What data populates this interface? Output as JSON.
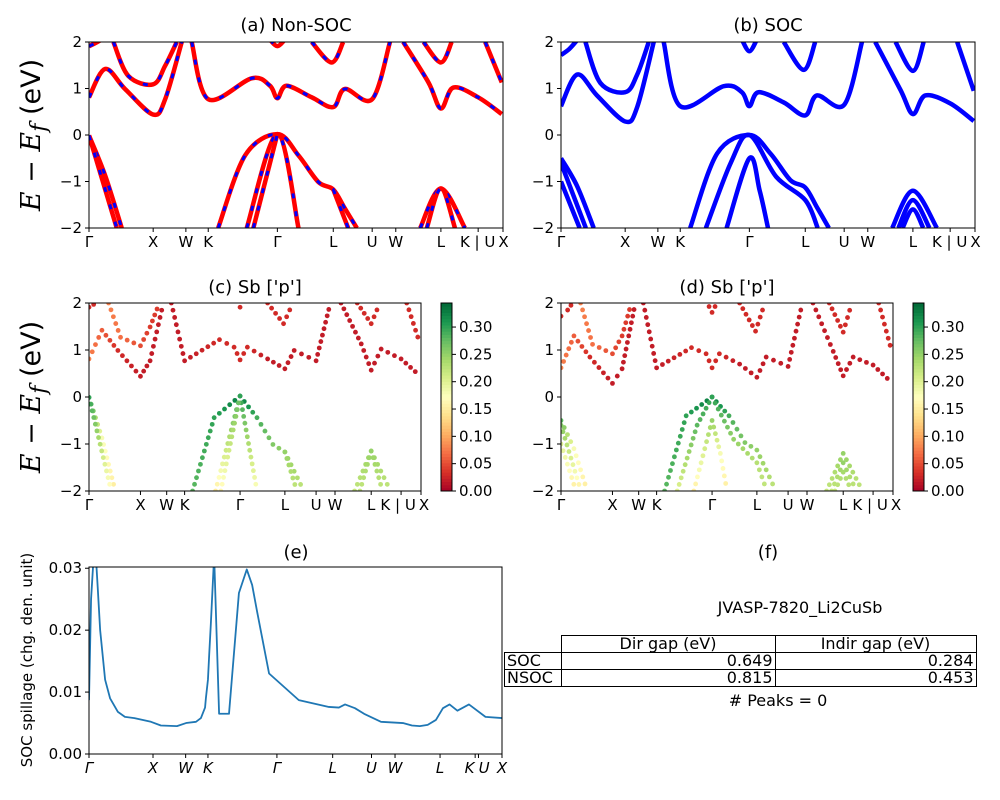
{
  "panels": {
    "a": {
      "title": "(a) Non-SOC"
    },
    "b": {
      "title": "(b) SOC"
    },
    "c": {
      "title": "(c)  Sb ['p']"
    },
    "d": {
      "title": "(d) Sb ['p']"
    },
    "e": {
      "title": "(e)",
      "ylabel": "SOC spillage (chg. den. unit)"
    },
    "f": {
      "title": "(f)"
    }
  },
  "ylabel_band": {
    "main": "E − E",
    "sub": "f",
    "unit": " (eV)"
  },
  "colors": {
    "non_soc_line": "#ff0000",
    "non_soc_dash": "#0000ff",
    "soc_line": "#0000ff",
    "spillage_line": "#1f77b4",
    "colormap": [
      "#a50026",
      "#d73027",
      "#f46d43",
      "#fdae61",
      "#fee08b",
      "#ffffbf",
      "#d9ef8b",
      "#a6d96a",
      "#66bd63",
      "#1a9850",
      "#006837"
    ]
  },
  "chart_data": [
    {
      "type": "line",
      "id": "band_structure",
      "kpath_ticks": [
        {
          "k": 0,
          "label": "Γ"
        },
        {
          "k": 0.155,
          "label": "X"
        },
        {
          "k": 0.234,
          "label": "W"
        },
        {
          "k": 0.288,
          "label": "K"
        },
        {
          "k": 0.455,
          "label": "Γ"
        },
        {
          "k": 0.59,
          "label": "L"
        },
        {
          "k": 0.684,
          "label": "U"
        },
        {
          "k": 0.741,
          "label": "W"
        },
        {
          "k": 0.85,
          "label": "L"
        },
        {
          "k": 0.94,
          "label": "K | U"
        },
        {
          "k": 1.0,
          "label": "X"
        }
      ],
      "ylim": [
        -2,
        2
      ],
      "yticks": [
        -2,
        -1,
        0,
        1,
        2
      ],
      "band_point_fields": [
        "k",
        "E - Ef (eV)",
        "Sb p weight"
      ],
      "non_soc_bands": [
        [
          [
            0,
            0.81,
            0.08
          ],
          [
            0.039,
            1.42,
            0.06
          ],
          [
            0.087,
            0.99,
            0.03
          ],
          [
            0.155,
            0.44,
            0.02
          ],
          [
            0.184,
            0.77,
            0.02
          ],
          [
            0.224,
            2.0,
            0.02
          ]
        ],
        [
          [
            0.248,
            2.0,
            0.02
          ],
          [
            0.288,
            0.77,
            0.02
          ],
          [
            0.393,
            1.22,
            0.03
          ],
          [
            0.437,
            1.06,
            0.03
          ],
          [
            0.455,
            0.79,
            0.03
          ],
          [
            0.477,
            1.06,
            0.03
          ],
          [
            0.538,
            0.81,
            0.02
          ],
          [
            0.59,
            0.6,
            0.02
          ],
          [
            0.618,
            0.99,
            0.02
          ],
          [
            0.684,
            0.77,
            0.02
          ],
          [
            0.727,
            2.0,
            0.02
          ]
        ],
        [
          [
            0.759,
            2.0,
            0.02
          ],
          [
            0.82,
            1.13,
            0.02
          ],
          [
            0.85,
            0.57,
            0.02
          ],
          [
            0.88,
            1.02,
            0.02
          ],
          [
            0.94,
            0.81,
            0.02
          ],
          [
            0.997,
            0.45,
            0.02
          ]
        ],
        [
          [
            0,
            1.91,
            0.03
          ],
          [
            0.014,
            1.97,
            0.03
          ],
          [
            0.03,
            2.05,
            0.03
          ]
        ],
        [
          [
            0.059,
            2.0,
            0.08
          ],
          [
            0.095,
            1.27,
            0.07
          ],
          [
            0.155,
            1.09,
            0.05
          ],
          [
            0.184,
            1.49,
            0.04
          ],
          [
            0.212,
            2.0,
            0.04
          ]
        ],
        [
          [
            0.437,
            2.05,
            0.03
          ],
          [
            0.455,
            1.91,
            0.03
          ],
          [
            0.473,
            2.05,
            0.03
          ]
        ],
        [
          [
            0.538,
            2.0,
            0.03
          ],
          [
            0.586,
            1.56,
            0.03
          ],
          [
            0.614,
            2.0,
            0.03
          ]
        ],
        [
          [
            0.808,
            2.0,
            0.03
          ],
          [
            0.85,
            1.56,
            0.03
          ],
          [
            0.876,
            2.0,
            0.03
          ]
        ],
        [
          [
            0.957,
            2.0,
            0.03
          ],
          [
            0.997,
            1.13,
            0.03
          ]
        ],
        [
          [
            0.312,
            -2,
            0.28
          ],
          [
            0.377,
            -0.44,
            0.3
          ],
          [
            0.455,
            0.02,
            0.33
          ],
          [
            0.506,
            -0.44,
            0.29
          ],
          [
            0.554,
            -1.01,
            0.26
          ],
          [
            0.59,
            -1.17,
            0.25
          ],
          [
            0.618,
            -1.58,
            0.24
          ],
          [
            0.647,
            -2,
            0.22
          ]
        ],
        [
          [
            0.381,
            -2,
            0.15
          ],
          [
            0.455,
            0.02,
            0.3
          ],
          [
            0.506,
            -2,
            0.17
          ]
        ],
        [
          [
            0.397,
            -2,
            0.16
          ],
          [
            0.455,
            0.02,
            0.28
          ]
        ],
        [
          [
            0.59,
            -1.17,
            0.25
          ],
          [
            0.626,
            -2,
            0.22
          ]
        ],
        [
          [
            0,
            -0.01,
            0.3
          ],
          [
            0.039,
            -0.87,
            0.18
          ],
          [
            0.079,
            -2,
            0.15
          ]
        ],
        [
          [
            0,
            -0.01,
            0.3
          ],
          [
            0.067,
            -2,
            0.16
          ]
        ],
        [
          [
            0.8,
            -2,
            0.22
          ],
          [
            0.85,
            -1.15,
            0.25
          ],
          [
            0.908,
            -2,
            0.22
          ]
        ],
        [
          [
            0.816,
            -2,
            0.22
          ],
          [
            0.85,
            -1.15,
            0.25
          ],
          [
            0.884,
            -2,
            0.22
          ]
        ]
      ],
      "soc_bands": [
        [
          [
            0,
            0.62,
            0.08
          ],
          [
            0.039,
            1.3,
            0.06
          ],
          [
            0.087,
            0.85,
            0.03
          ],
          [
            0.155,
            0.29,
            0.02
          ],
          [
            0.184,
            0.6,
            0.02
          ],
          [
            0.224,
            2.0,
            0.02
          ]
        ],
        [
          [
            0.248,
            2.0,
            0.02
          ],
          [
            0.288,
            0.62,
            0.02
          ],
          [
            0.393,
            1.05,
            0.03
          ],
          [
            0.437,
            0.92,
            0.03
          ],
          [
            0.455,
            0.62,
            0.03
          ],
          [
            0.477,
            0.92,
            0.03
          ],
          [
            0.538,
            0.7,
            0.02
          ],
          [
            0.59,
            0.42,
            0.02
          ],
          [
            0.618,
            0.85,
            0.02
          ],
          [
            0.684,
            0.65,
            0.02
          ],
          [
            0.727,
            2.0,
            0.02
          ]
        ],
        [
          [
            0.759,
            2.0,
            0.02
          ],
          [
            0.82,
            0.97,
            0.02
          ],
          [
            0.85,
            0.45,
            0.02
          ],
          [
            0.88,
            0.85,
            0.02
          ],
          [
            0.94,
            0.68,
            0.02
          ],
          [
            0.997,
            0.3,
            0.02
          ]
        ],
        [
          [
            0,
            1.72,
            0.03
          ],
          [
            0.02,
            1.85,
            0.03
          ],
          [
            0.04,
            2.05,
            0.03
          ]
        ],
        [
          [
            0.059,
            2.0,
            0.08
          ],
          [
            0.095,
            1.12,
            0.07
          ],
          [
            0.155,
            0.92,
            0.05
          ],
          [
            0.184,
            1.3,
            0.04
          ],
          [
            0.212,
            2.0,
            0.04
          ]
        ],
        [
          [
            0.437,
            2.05,
            0.03
          ],
          [
            0.455,
            1.8,
            0.03
          ],
          [
            0.473,
            2.05,
            0.03
          ]
        ],
        [
          [
            0.538,
            2.0,
            0.03
          ],
          [
            0.586,
            1.4,
            0.03
          ],
          [
            0.614,
            2.0,
            0.03
          ]
        ],
        [
          [
            0.808,
            2.0,
            0.03
          ],
          [
            0.85,
            1.38,
            0.03
          ],
          [
            0.876,
            2.0,
            0.03
          ]
        ],
        [
          [
            0.957,
            2.0,
            0.03
          ],
          [
            0.997,
            0.95,
            0.03
          ]
        ],
        [
          [
            0.312,
            -2,
            0.28
          ],
          [
            0.377,
            -0.4,
            0.3
          ],
          [
            0.455,
            0.0,
            0.33
          ],
          [
            0.506,
            -0.4,
            0.29
          ],
          [
            0.554,
            -0.97,
            0.26
          ],
          [
            0.59,
            -1.13,
            0.25
          ],
          [
            0.618,
            -1.55,
            0.24
          ],
          [
            0.647,
            -2,
            0.22
          ]
        ],
        [
          [
            0.35,
            -2,
            0.2
          ],
          [
            0.41,
            -0.6,
            0.28
          ],
          [
            0.455,
            0.0,
            0.3
          ],
          [
            0.52,
            -0.9,
            0.25
          ],
          [
            0.59,
            -1.4,
            0.23
          ],
          [
            0.62,
            -2,
            0.22
          ]
        ],
        [
          [
            0.4,
            -2,
            0.15
          ],
          [
            0.455,
            -0.5,
            0.25
          ],
          [
            0.48,
            -1.2,
            0.18
          ],
          [
            0.5,
            -2,
            0.15
          ]
        ],
        [
          [
            0,
            -0.5,
            0.28
          ],
          [
            0.039,
            -1.1,
            0.18
          ],
          [
            0.079,
            -2,
            0.15
          ]
        ],
        [
          [
            0,
            -0.6,
            0.26
          ],
          [
            0.06,
            -2,
            0.15
          ]
        ],
        [
          [
            0,
            -1.0,
            0.2
          ],
          [
            0.045,
            -2,
            0.15
          ]
        ],
        [
          [
            0.8,
            -2,
            0.22
          ],
          [
            0.85,
            -1.2,
            0.25
          ],
          [
            0.908,
            -2,
            0.22
          ]
        ],
        [
          [
            0.815,
            -2,
            0.22
          ],
          [
            0.85,
            -1.4,
            0.25
          ],
          [
            0.89,
            -2,
            0.22
          ]
        ],
        [
          [
            0.825,
            -2,
            0.22
          ],
          [
            0.85,
            -1.6,
            0.24
          ],
          [
            0.875,
            -2,
            0.22
          ]
        ]
      ],
      "colorbar": {
        "range": [
          0,
          0.344
        ],
        "ticks": [
          "0.00",
          "0.05",
          "0.10",
          "0.15",
          "0.20",
          "0.25",
          "0.30"
        ]
      }
    },
    {
      "type": "line",
      "id": "soc_spillage",
      "ylabel": "SOC spillage (chg. den. unit)",
      "ylim": [
        0,
        0.0302
      ],
      "yticks": [
        "0.00",
        "0.01",
        "0.02",
        "0.03"
      ],
      "xticks": [
        {
          "k": 0,
          "label": "Γ"
        },
        {
          "k": 0.155,
          "label": "X"
        },
        {
          "k": 0.234,
          "label": "W"
        },
        {
          "k": 0.288,
          "label": "K"
        },
        {
          "k": 0.455,
          "label": "Γ"
        },
        {
          "k": 0.59,
          "label": "L"
        },
        {
          "k": 0.684,
          "label": "U"
        },
        {
          "k": 0.741,
          "label": "W"
        },
        {
          "k": 0.85,
          "label": "L"
        },
        {
          "k": 0.935,
          "label": "K"
        },
        {
          "k": 0.943,
          "label": "U"
        },
        {
          "k": 1.0,
          "label": "X"
        }
      ],
      "x": [
        0,
        0.005,
        0.01,
        0.014,
        0.017,
        0.021,
        0.027,
        0.039,
        0.051,
        0.07,
        0.087,
        0.11,
        0.15,
        0.174,
        0.213,
        0.235,
        0.259,
        0.271,
        0.281,
        0.283,
        0.288,
        0.291,
        0.295,
        0.303,
        0.315,
        0.339,
        0.363,
        0.382,
        0.395,
        0.407,
        0.436,
        0.508,
        0.581,
        0.605,
        0.62,
        0.644,
        0.666,
        0.707,
        0.76,
        0.782,
        0.801,
        0.82,
        0.84,
        0.857,
        0.873,
        0.892,
        0.92,
        0.96,
        1.0
      ],
      "y": [
        0.0087,
        0.025,
        0.0305,
        0.033,
        0.0315,
        0.027,
        0.02,
        0.012,
        0.009,
        0.0068,
        0.006,
        0.0058,
        0.0052,
        0.0046,
        0.0045,
        0.005,
        0.0052,
        0.0058,
        0.0075,
        0.009,
        0.012,
        0.016,
        0.021,
        0.032,
        0.0065,
        0.0065,
        0.026,
        0.0298,
        0.0273,
        0.023,
        0.013,
        0.0087,
        0.0076,
        0.0075,
        0.008,
        0.0074,
        0.0065,
        0.0052,
        0.005,
        0.0046,
        0.0045,
        0.0047,
        0.0055,
        0.0074,
        0.008,
        0.007,
        0.008,
        0.006,
        0.0058
      ]
    },
    {
      "type": "table",
      "id": "gap_table",
      "title": "JVASP-7820_Li2CuSb",
      "columns": [
        "Dir gap (eV)",
        "Indir gap (eV)"
      ],
      "rows": [
        {
          "label": "SOC",
          "values": [
            "0.649",
            "0.284"
          ]
        },
        {
          "label": "NSOC",
          "values": [
            "0.815",
            "0.453"
          ]
        }
      ],
      "footer": "# Peaks = 0"
    }
  ]
}
